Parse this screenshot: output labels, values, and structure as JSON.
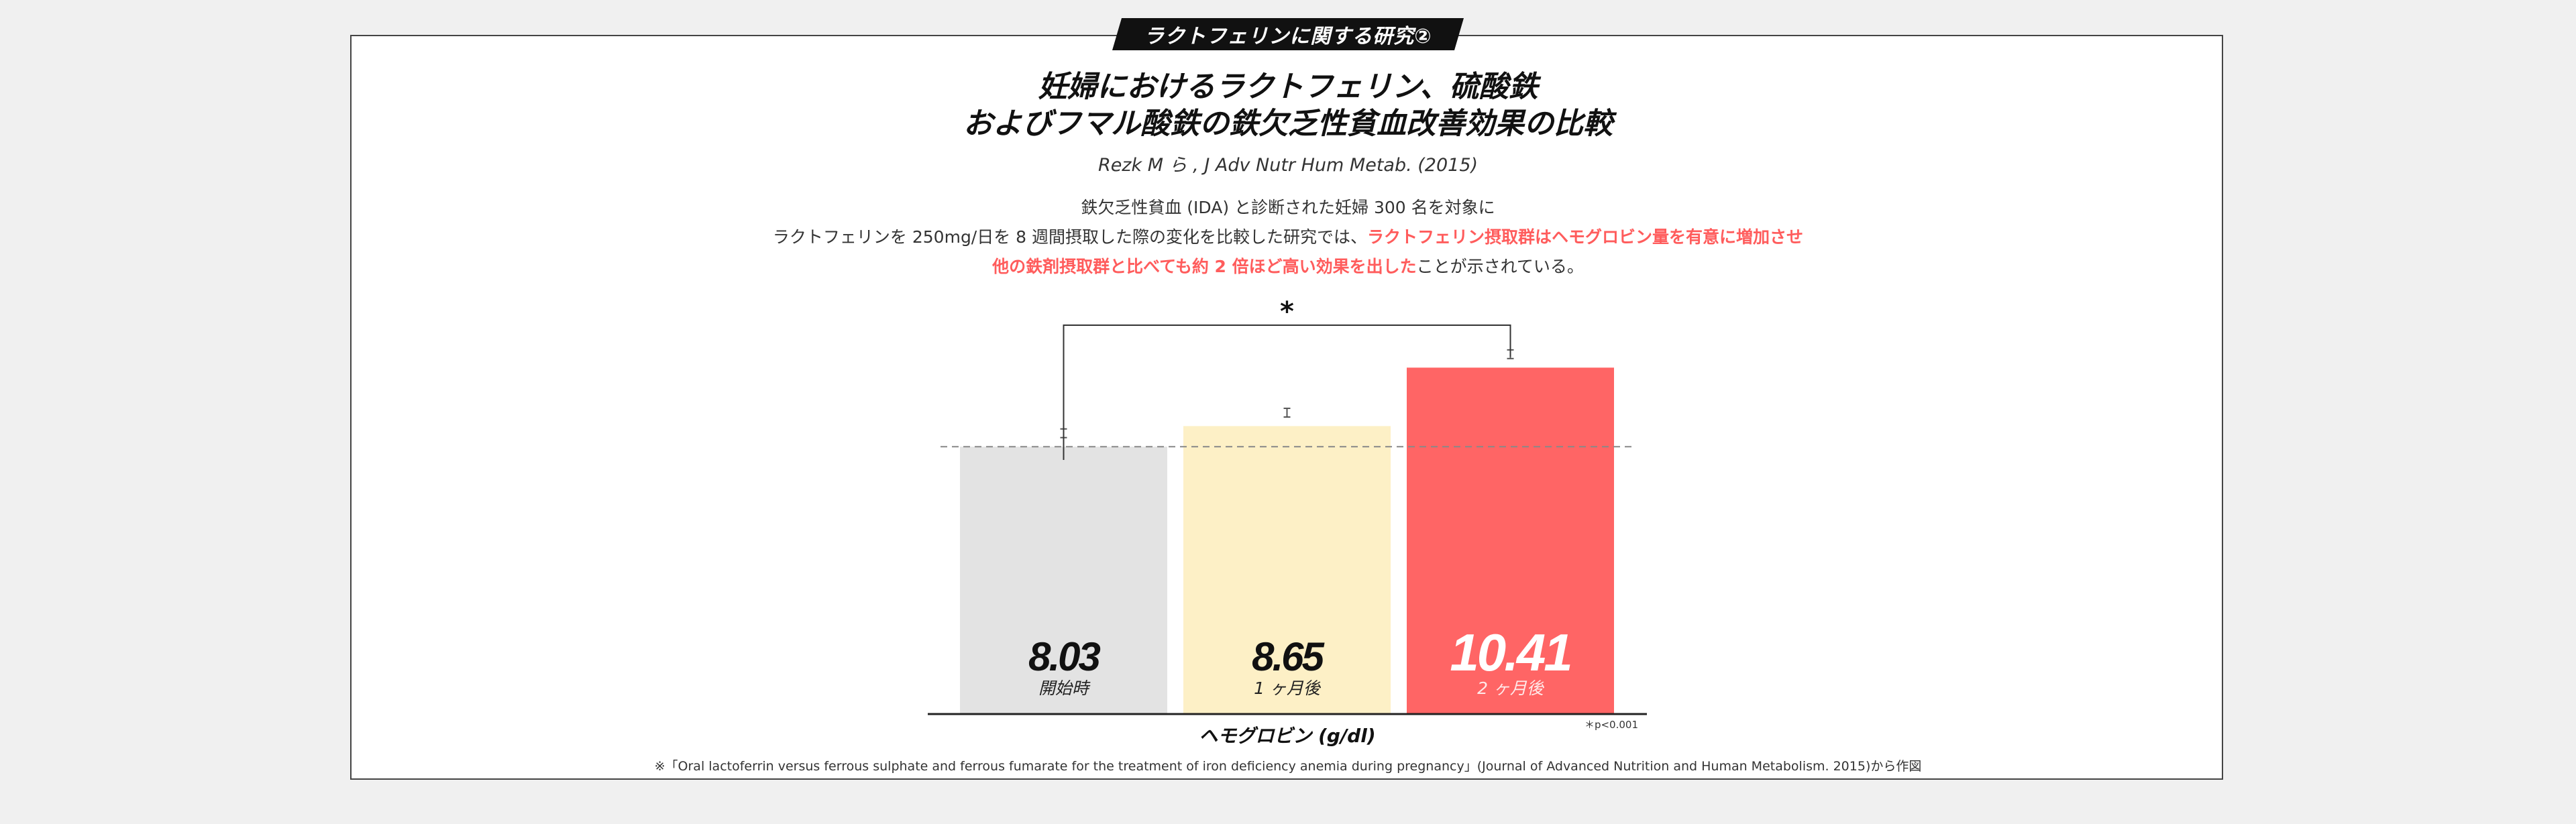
{
  "badge": "ラクトフェリンに関する研究②",
  "title_line1": "妊婦におけるラクトフェリン、硫酸鉄",
  "title_line2": "およびフマル酸鉄の鉄欠乏性貧血改善効果の比較",
  "citation": "Rezk M ら , J Adv Nutr Hum Metab. (2015)",
  "description": {
    "line1": "鉄欠乏性貧血 (IDA) と診断された妊婦 300 名を対象に",
    "line2_plain": "ラクトフェリンを 250mg/日を 8 週間摂取した際の変化を比較した研究では、",
    "line2_highlight": "ラクトフェリン摂取群はヘモグロビン量を有意に増加させ",
    "line3_highlight": "他の鉄剤摂取群と比べても約 2 倍ほど高い効果を出した",
    "line3_plain": "ことが示されている。"
  },
  "chart_data": {
    "type": "bar",
    "categories": [
      "開始時",
      "1 ヶ月後",
      "2 ヶ月後"
    ],
    "values": [
      8.03,
      8.65,
      10.41
    ],
    "value_labels": [
      "8.03",
      "8.65",
      "10.41"
    ],
    "errors": [
      0.1,
      0.1,
      0.1
    ],
    "colors": [
      "#e3e3e3",
      "#fdf0c6",
      "#ff6565"
    ],
    "label_colors": [
      "#111111",
      "#111111",
      "#ffffff"
    ],
    "ylim": [
      0,
      10.8
    ],
    "baseline": 8.03,
    "xlabel": "ヘモグロビン (g/dl)",
    "significance": {
      "from": 0,
      "to": 2,
      "symbol": "*"
    },
    "p_note": "＊p<0.001"
  },
  "footnote": "※「Oral lactoferrin versus ferrous sulphate and ferrous fumarate for the treatment of iron deficiency anemia during pregnancy」(Journal of Advanced Nutrition and Human Metabolism. 2015)から作図"
}
